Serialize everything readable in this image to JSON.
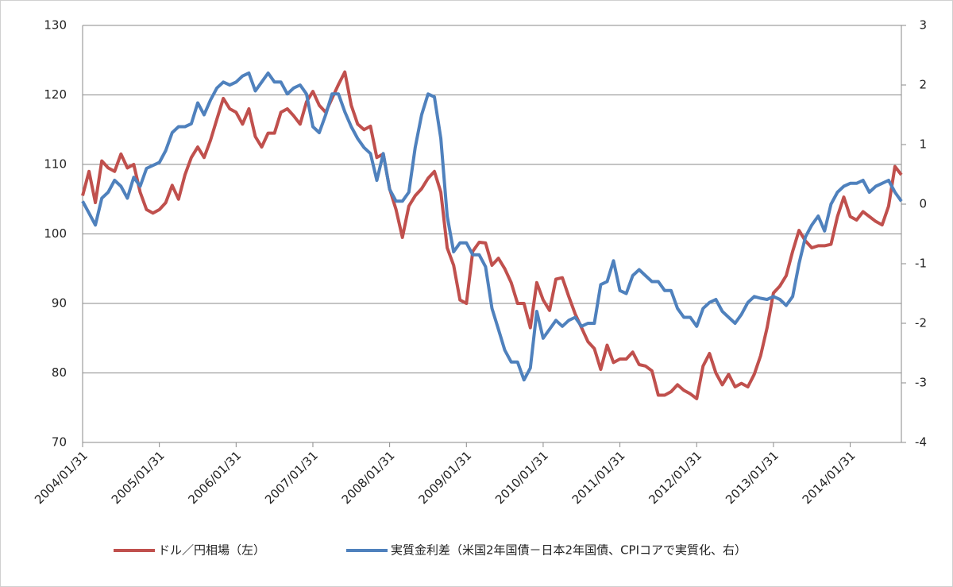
{
  "chart_data": {
    "type": "line",
    "categories": [
      "2004/01/31",
      null,
      null,
      null,
      null,
      null,
      null,
      null,
      null,
      null,
      null,
      null,
      "2005/01/31",
      null,
      null,
      null,
      null,
      null,
      null,
      null,
      null,
      null,
      null,
      null,
      "2006/01/31",
      null,
      null,
      null,
      null,
      null,
      null,
      null,
      null,
      null,
      null,
      null,
      "2007/01/31",
      null,
      null,
      null,
      null,
      null,
      null,
      null,
      null,
      null,
      null,
      null,
      "2008/01/31",
      null,
      null,
      null,
      null,
      null,
      null,
      null,
      null,
      null,
      null,
      null,
      "2009/01/31",
      null,
      null,
      null,
      null,
      null,
      null,
      null,
      null,
      null,
      null,
      null,
      "2010/01/31",
      null,
      null,
      null,
      null,
      null,
      null,
      null,
      null,
      null,
      null,
      null,
      "2011/01/31",
      null,
      null,
      null,
      null,
      null,
      null,
      null,
      null,
      null,
      null,
      null,
      "2012/01/31",
      null,
      null,
      null,
      null,
      null,
      null,
      null,
      null,
      null,
      null,
      null,
      "2013/01/31",
      null,
      null,
      null,
      null,
      null,
      null,
      null,
      null,
      null,
      null,
      null,
      "2014/01/31",
      null,
      null,
      null,
      null,
      null,
      null,
      null,
      null
    ],
    "series": [
      {
        "name": "ドル／円相場（左）",
        "color": "#c0504d",
        "axis": "y",
        "values": [
          105.5,
          109,
          104.5,
          110.5,
          109.5,
          109,
          111.5,
          109.5,
          110,
          106,
          103.5,
          103,
          103.5,
          104.5,
          107,
          105,
          108.5,
          111,
          112.5,
          111,
          113.5,
          116.5,
          119.5,
          118,
          117.5,
          115.8,
          118,
          114,
          112.5,
          114.5,
          114.5,
          117.5,
          118,
          117,
          115.8,
          119,
          120.5,
          118.5,
          117.5,
          119.5,
          121.5,
          123.3,
          118.5,
          115.8,
          115,
          115.5,
          111,
          111.5,
          106.5,
          103.5,
          99.5,
          104,
          105.5,
          106.5,
          108,
          109,
          106,
          98,
          95.5,
          90.5,
          90,
          97.5,
          98.8,
          98.7,
          95.5,
          96.5,
          95,
          93,
          90,
          90,
          86.5,
          93,
          90.5,
          89,
          93.5,
          93.7,
          91,
          88.5,
          86.5,
          84.5,
          83.5,
          80.5,
          84,
          81.5,
          82,
          82,
          83,
          81.2,
          81,
          80.3,
          76.8,
          76.8,
          77.3,
          78.3,
          77.5,
          77,
          76.3,
          81,
          82.8,
          80,
          78.3,
          79.8,
          78,
          78.5,
          78,
          79.8,
          82.5,
          86.5,
          91.5,
          92.5,
          94,
          97.5,
          100.5,
          99,
          98,
          98.3,
          98.3,
          98.5,
          102.5,
          105.3,
          102.5,
          102,
          103.2,
          102.5,
          101.8,
          101.3,
          104,
          109.7,
          108.5
        ]
      },
      {
        "name": "実質金利差（米国2年国債－日本2年国債、CPIコアで実質化、右）",
        "color": "#4f81bd",
        "axis": "y2",
        "values": [
          0.05,
          -0.15,
          -0.35,
          0.1,
          0.2,
          0.4,
          0.3,
          0.1,
          0.45,
          0.3,
          0.6,
          0.65,
          0.7,
          0.9,
          1.2,
          1.3,
          1.3,
          1.35,
          1.7,
          1.5,
          1.75,
          1.95,
          2.05,
          2.0,
          2.05,
          2.15,
          2.2,
          1.9,
          2.05,
          2.2,
          2.05,
          2.05,
          1.85,
          1.95,
          2.0,
          1.85,
          1.3,
          1.2,
          1.5,
          1.85,
          1.85,
          1.55,
          1.3,
          1.1,
          0.95,
          0.85,
          0.4,
          0.85,
          0.25,
          0.05,
          0.05,
          0.2,
          0.95,
          1.5,
          1.85,
          1.8,
          1.1,
          -0.2,
          -0.8,
          -0.65,
          -0.65,
          -0.85,
          -0.85,
          -1.05,
          -1.75,
          -2.1,
          -2.45,
          -2.65,
          -2.65,
          -2.95,
          -2.75,
          -1.8,
          -2.25,
          -2.1,
          -1.95,
          -2.05,
          -1.95,
          -1.9,
          -2.05,
          -2.0,
          -2.0,
          -1.35,
          -1.3,
          -0.95,
          -1.45,
          -1.5,
          -1.2,
          -1.1,
          -1.2,
          -1.3,
          -1.3,
          -1.45,
          -1.45,
          -1.75,
          -1.9,
          -1.9,
          -2.05,
          -1.75,
          -1.65,
          -1.6,
          -1.8,
          -1.9,
          -2.0,
          -1.85,
          -1.65,
          -1.55,
          -1.58,
          -1.6,
          -1.55,
          -1.6,
          -1.7,
          -1.55,
          -1.0,
          -0.55,
          -0.35,
          -0.2,
          -0.45,
          0.0,
          0.2,
          0.3,
          0.35,
          0.35,
          0.4,
          0.2,
          0.3,
          0.35,
          0.4,
          0.2,
          0.05
        ]
      }
    ],
    "ylim": [
      70,
      130
    ],
    "yticks": [
      70,
      80,
      90,
      100,
      110,
      120,
      130
    ],
    "y2lim": [
      -4,
      3
    ],
    "y2ticks": [
      -4,
      -3,
      -2,
      -1,
      0,
      1,
      2,
      3
    ],
    "grid": true,
    "legend": "bottom"
  }
}
